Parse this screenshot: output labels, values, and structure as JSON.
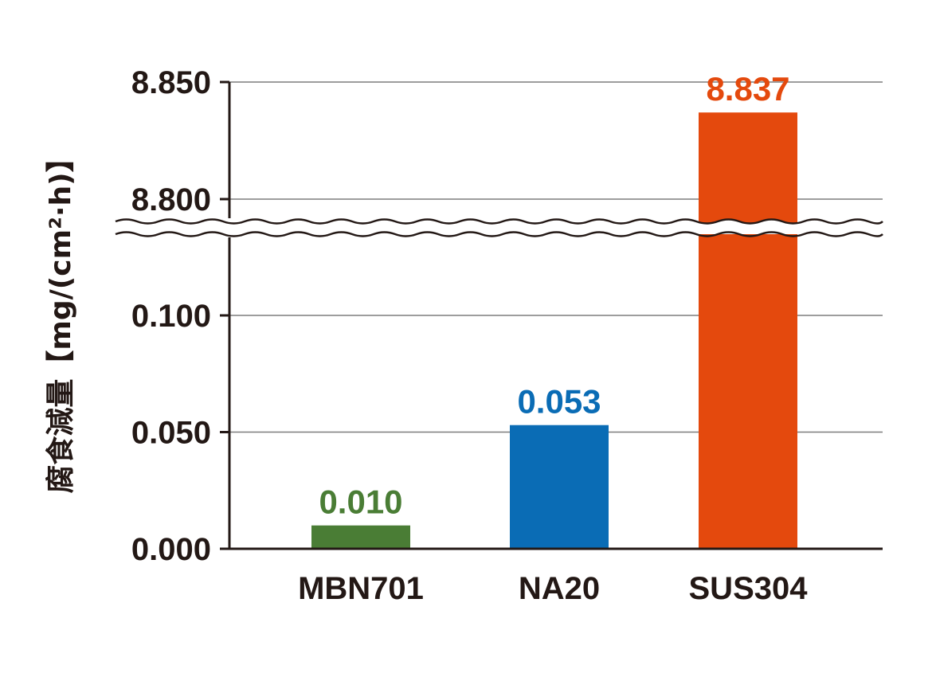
{
  "chart_data": {
    "type": "bar",
    "ylabel": "腐食減量【mg/(cm²·h)】",
    "categories": [
      "MBN701",
      "NA20",
      "SUS304"
    ],
    "values": [
      0.01,
      0.053,
      8.837
    ],
    "value_labels": [
      "0.010",
      "0.053",
      "8.837"
    ],
    "colors": [
      "#4a7d35",
      "#0a6cb5",
      "#e4490d"
    ],
    "axis_break": {
      "between": [
        0.1,
        8.8
      ]
    },
    "y_ticks": [
      {
        "value": 0.0,
        "label": "0.000"
      },
      {
        "value": 0.05,
        "label": "0.050"
      },
      {
        "value": 0.1,
        "label": "0.100"
      },
      {
        "value": 8.8,
        "label": "8.800"
      },
      {
        "value": 8.85,
        "label": "8.850"
      }
    ],
    "ylim_lower": [
      0,
      0.1
    ],
    "ylim_upper": [
      8.8,
      8.85
    ],
    "grid": true,
    "legend": "none"
  }
}
